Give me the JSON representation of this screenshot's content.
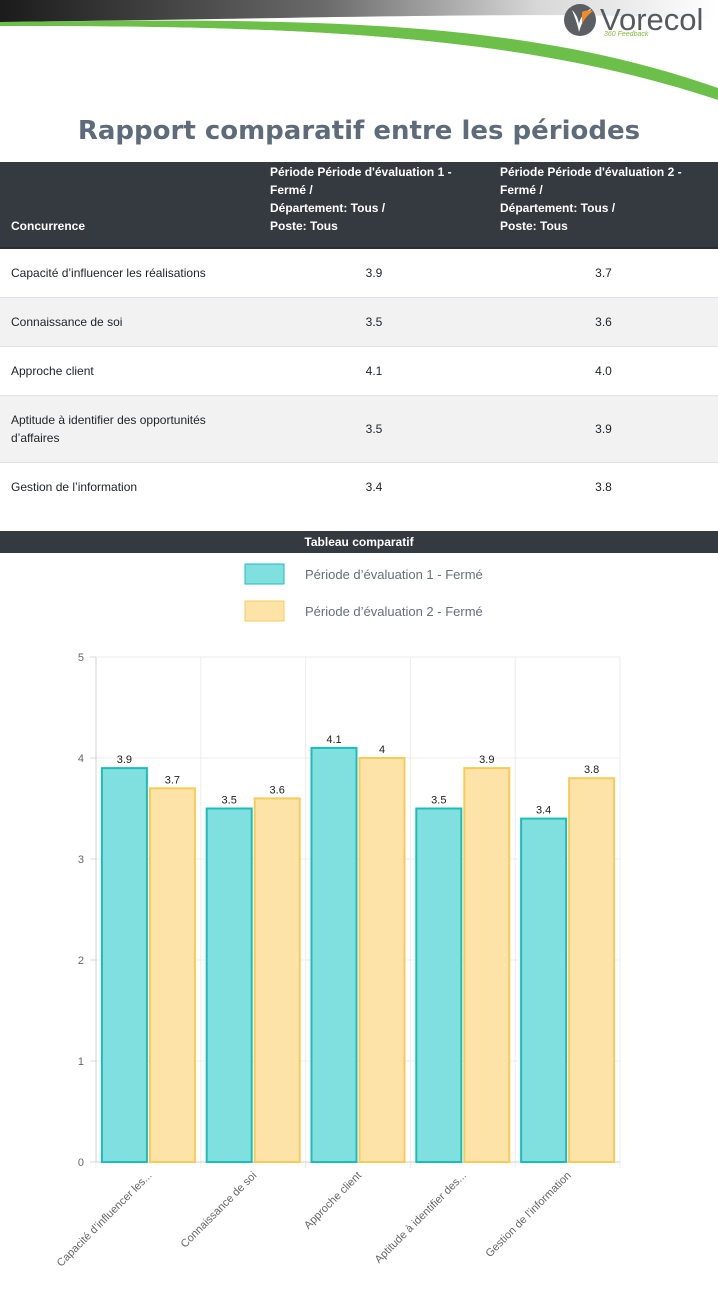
{
  "brand": {
    "name": "Vorecol",
    "tagline": "360 Feedback"
  },
  "page_title": "Rapport comparatif entre les périodes",
  "table": {
    "headers": {
      "competency": "Concurrence",
      "period1_lines": [
        "Période Période d'évaluation 1 -",
        "Fermé /",
        "Département: Tous /",
        "Poste: Tous"
      ],
      "period2_lines": [
        "Période Période d'évaluation 2 -",
        "Fermé /",
        "Département: Tous /",
        "Poste: Tous"
      ]
    },
    "rows": [
      {
        "name": "Capacité d’influencer les réalisations",
        "p1": "3.9",
        "p2": "3.7"
      },
      {
        "name": "Connaissance de soi",
        "p1": "3.5",
        "p2": "3.6"
      },
      {
        "name": "Approche client",
        "p1": "4.1",
        "p2": "4.0"
      },
      {
        "name": "Aptitude à identifier des opportunités d’affaires",
        "p1": "3.5",
        "p2": "3.9"
      },
      {
        "name": "Gestion de l’information",
        "p1": "3.4",
        "p2": "3.8"
      }
    ]
  },
  "chart_title": "Tableau comparatif",
  "chart_data": {
    "type": "bar",
    "categories": [
      "Capacité d’influencer les...",
      "Connaissance de soi",
      "Approche client",
      "Aptitude à identifier des...",
      "Gestion de l’information"
    ],
    "series": [
      {
        "name": "Période d’évaluation 1 - Fermé",
        "values": [
          3.9,
          3.5,
          4.1,
          3.5,
          3.4
        ],
        "labels": [
          "3.9",
          "3.5",
          "4.1",
          "3.5",
          "3.4"
        ],
        "fill": "#80e0df",
        "stroke": "#1bbdb9"
      },
      {
        "name": "Période d’évaluation 2 - Fermé",
        "values": [
          3.7,
          3.6,
          4.0,
          3.9,
          3.8
        ],
        "labels": [
          "3.7",
          "3.6",
          "4",
          "3.9",
          "3.8"
        ],
        "fill": "#fde3a7",
        "stroke": "#f7cb5a"
      }
    ],
    "ylim": [
      0,
      5
    ],
    "yticks": [
      0,
      1,
      2,
      3,
      4,
      5
    ],
    "grid": true,
    "legend": "top-center"
  }
}
